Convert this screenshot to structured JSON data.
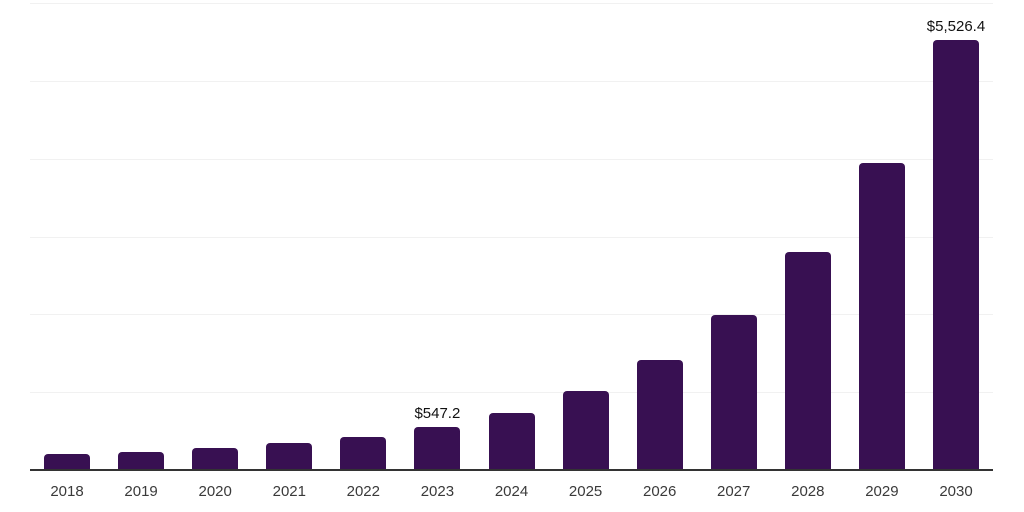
{
  "chart_data": {
    "type": "bar",
    "title": "",
    "xlabel": "",
    "ylabel": "",
    "categories": [
      "2018",
      "2019",
      "2020",
      "2021",
      "2022",
      "2023",
      "2024",
      "2025",
      "2026",
      "2027",
      "2028",
      "2029",
      "2030"
    ],
    "values": [
      208,
      235,
      278,
      350,
      428,
      547.2,
      727,
      1015,
      1415,
      1990,
      2805,
      3945,
      5526.4
    ],
    "data_labels": {
      "2023": "$547.2",
      "2030": "$5,526.4"
    },
    "ylim": [
      0,
      6000
    ],
    "gridline_interval": 1000,
    "grid": "horizontal-only",
    "legend": "none",
    "y_axis_labels_visible": false,
    "colors": {
      "bar_fill": "#381052",
      "axis_line": "#333333",
      "gridline": "#f1f1f1",
      "tick_label": "#3a3a3a",
      "value_label": "#111111",
      "background": "#ffffff"
    }
  }
}
